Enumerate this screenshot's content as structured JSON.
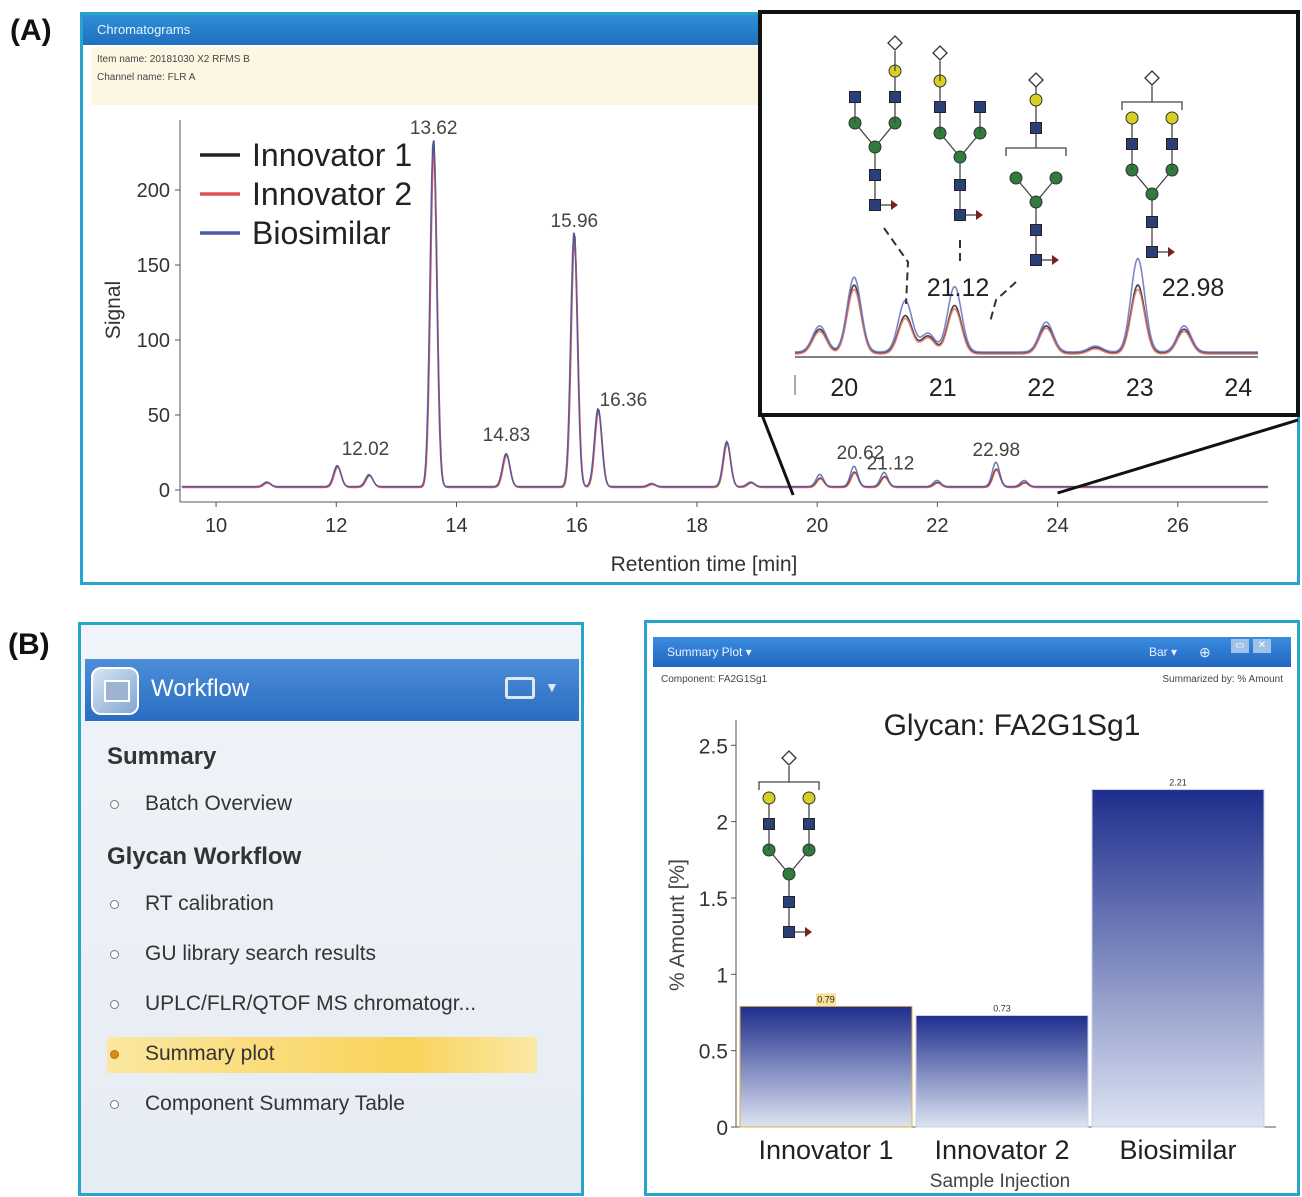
{
  "panel_a": {
    "label": "(A)",
    "window_title": "Chromatograms",
    "item_name": "Item name: 20181030 X2 RFMS B",
    "channel_name": "Channel name: FLR A",
    "legend": [
      "Innovator 1",
      "Innovator 2",
      "Biosimilar"
    ],
    "y_label": "Signal",
    "x_label": "Retention time [min]",
    "x_ticks": [
      "10",
      "12",
      "14",
      "16",
      "18",
      "20",
      "22",
      "24",
      "26"
    ],
    "y_ticks": [
      "0",
      "50",
      "100",
      "150",
      "200"
    ],
    "peak_labels": [
      "12.02",
      "13.62",
      "14.83",
      "15.96",
      "16.36",
      "20.62",
      "21.12",
      "22.98"
    ],
    "inset": {
      "x_ticks": [
        "20",
        "21",
        "22",
        "23",
        "24"
      ],
      "peak_labels": [
        "21.12",
        "22.98"
      ]
    }
  },
  "panel_b": {
    "label": "(B)",
    "workflow": {
      "title": "Workflow",
      "sections": [
        {
          "title": "Summary",
          "items": [
            {
              "label": "Batch Overview",
              "active": false
            }
          ]
        },
        {
          "title": "Glycan Workflow",
          "items": [
            {
              "label": "RT calibration",
              "active": false
            },
            {
              "label": "GU library search results",
              "active": false
            },
            {
              "label": "UPLC/FLR/QTOF MS chromatogr...",
              "active": false
            },
            {
              "label": "Summary plot",
              "active": true
            },
            {
              "label": "Component Summary Table",
              "active": false
            }
          ]
        }
      ]
    },
    "summary_plot": {
      "window_title": "Summary Plot ▾",
      "toolbar_right": "Bar ▾",
      "component": "Component: FA2G1Sg1",
      "summarized_by": "Summarized by: % Amount",
      "plot_title": "Glycan: FA2G1Sg1",
      "y_label": "% Amount [%]",
      "x_label": "Sample Injection"
    }
  },
  "chart_data": [
    {
      "type": "line",
      "title": "",
      "xlabel": "Retention time [min]",
      "ylabel": "Signal",
      "xlim": [
        9.4,
        27.5
      ],
      "ylim": [
        -5,
        240
      ],
      "legend": "top-left",
      "series": [
        {
          "name": "Innovator 1",
          "color": "#222222"
        },
        {
          "name": "Innovator 2",
          "color": "#e05050"
        },
        {
          "name": "Biosimilar",
          "color": "#4a5aa8"
        }
      ],
      "peaks": [
        {
          "x": 10.85,
          "y": 3,
          "label": ""
        },
        {
          "x": 12.02,
          "y": 14,
          "label": "12.02"
        },
        {
          "x": 12.55,
          "y": 8,
          "label": ""
        },
        {
          "x": 13.62,
          "y": 232,
          "label": "13.62"
        },
        {
          "x": 14.83,
          "y": 22,
          "label": "14.83"
        },
        {
          "x": 15.96,
          "y": 170,
          "label": "15.96"
        },
        {
          "x": 16.36,
          "y": 52,
          "label": "16.36"
        },
        {
          "x": 17.25,
          "y": 2,
          "label": ""
        },
        {
          "x": 18.5,
          "y": 30,
          "label": ""
        },
        {
          "x": 18.9,
          "y": 3,
          "label": ""
        },
        {
          "x": 20.05,
          "y": 6,
          "label": ""
        },
        {
          "x": 20.62,
          "y": 10,
          "label": "20.62"
        },
        {
          "x": 21.12,
          "y": 7,
          "label": "21.12"
        },
        {
          "x": 22.0,
          "y": 3,
          "label": ""
        },
        {
          "x": 22.98,
          "y": 12,
          "label": "22.98"
        },
        {
          "x": 23.45,
          "y": 3,
          "label": ""
        }
      ]
    },
    {
      "type": "line",
      "title": "",
      "xlim": [
        19.5,
        24.2
      ],
      "series": [
        {
          "name": "Innovator 1",
          "color": "#222222"
        },
        {
          "name": "Innovator 2",
          "color": "#e07060"
        },
        {
          "name": "Biosimilar",
          "color": "#6670c0"
        }
      ],
      "peaks": [
        {
          "x": 19.75,
          "y": 0.35
        },
        {
          "x": 20.1,
          "y": 1.0
        },
        {
          "x": 20.62,
          "y": 0.55
        },
        {
          "x": 20.85,
          "y": 0.25
        },
        {
          "x": 21.12,
          "y": 0.7
        },
        {
          "x": 22.05,
          "y": 0.4
        },
        {
          "x": 22.55,
          "y": 0.08
        },
        {
          "x": 22.98,
          "y": 1.0
        },
        {
          "x": 23.45,
          "y": 0.35
        }
      ]
    },
    {
      "type": "bar",
      "title": "Glycan: FA2G1Sg1",
      "xlabel": "Sample Injection",
      "ylabel": "% Amount [%]",
      "categories": [
        "Innovator 1",
        "Innovator 2",
        "Biosimilar"
      ],
      "values": [
        0.79,
        0.73,
        2.21
      ],
      "data_labels": [
        "0.79",
        "0.73",
        "2.21"
      ],
      "ylim": [
        0,
        2.6
      ],
      "y_ticks": [
        "0",
        "0.5",
        "1",
        "1.5",
        "2",
        "2.5"
      ]
    }
  ]
}
